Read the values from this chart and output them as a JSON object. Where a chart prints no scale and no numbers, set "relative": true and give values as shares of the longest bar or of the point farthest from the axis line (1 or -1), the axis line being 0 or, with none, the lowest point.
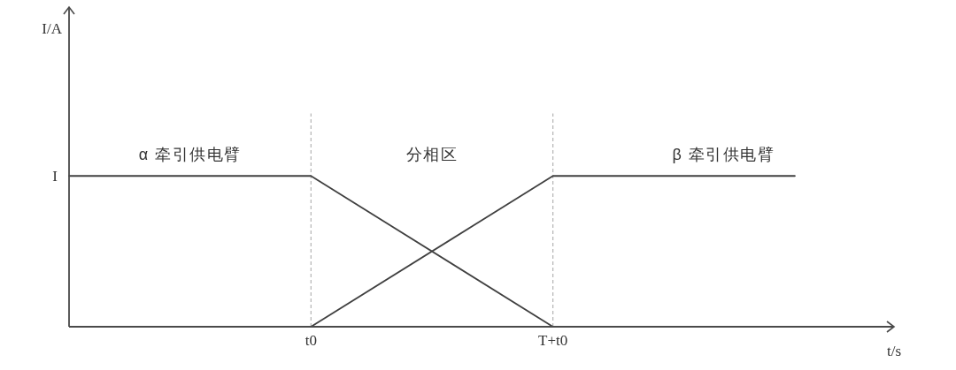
{
  "chart_data": {
    "type": "line",
    "relative": true,
    "xlabel": "t/s",
    "categories": [
      null,
      "t0",
      "T+t0",
      null
    ],
    "series": [
      {
        "color": "#404040",
        "values": [
          1,
          1,
          0,
          null
        ]
      },
      {
        "color": "#404040",
        "values": [
          null,
          0,
          1,
          1
        ]
      }
    ],
    "ref_lines": [
      {
        "axis": "x",
        "value": "t0",
        "color": "#b4b4b4",
        "line_style": "dashed"
      },
      {
        "axis": "x",
        "value": "T+t0",
        "color": "#b4b4b4",
        "line_style": "dashed"
      }
    ],
    "annotations": [
      "I/A",
      "I",
      "α 牵引供电臂",
      "分相区",
      "β 牵引供电臂"
    ]
  }
}
